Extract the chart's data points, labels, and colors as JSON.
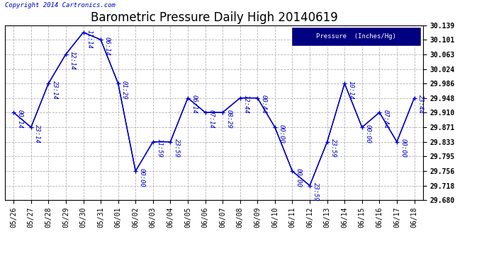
{
  "title": "Barometric Pressure Daily High 20140619",
  "copyright": "Copyright 2014 Cartronics.com",
  "legend_label": "Pressure  (Inches/Hg)",
  "x_labels": [
    "05/26",
    "05/27",
    "05/28",
    "05/29",
    "05/30",
    "05/31",
    "06/01",
    "06/02",
    "06/03",
    "06/04",
    "06/05",
    "06/06",
    "06/07",
    "06/08",
    "06/09",
    "06/10",
    "06/11",
    "06/12",
    "06/13",
    "06/14",
    "06/15",
    "06/16",
    "06/17",
    "06/18"
  ],
  "y_values": [
    29.91,
    29.871,
    29.986,
    30.063,
    30.12,
    30.101,
    29.986,
    29.756,
    29.833,
    29.833,
    29.948,
    29.91,
    29.91,
    29.948,
    29.948,
    29.871,
    29.756,
    29.718,
    29.833,
    29.986,
    29.871,
    29.91,
    29.833,
    29.948
  ],
  "point_labels": [
    "00:14",
    "23:14",
    "23:14",
    "12:14",
    "11:14",
    "06:14",
    "01:29",
    "00:00",
    "11:59",
    "23:59",
    "06:14",
    "07:14",
    "08:29",
    "12:44",
    "00:44",
    "00:00",
    "00:00",
    "23:59",
    "23:59",
    "10:14",
    "00:00",
    "07:44",
    "00:00",
    "23:44"
  ],
  "ylim_min": 29.68,
  "ylim_max": 30.139,
  "yticks": [
    29.68,
    29.718,
    29.756,
    29.795,
    29.833,
    29.871,
    29.91,
    29.948,
    29.986,
    30.024,
    30.063,
    30.101,
    30.139
  ],
  "line_color": "#0000CC",
  "marker_color": "#000000",
  "bg_color": "#ffffff",
  "grid_color": "#aaaaaa",
  "title_fontsize": 12,
  "label_fontsize": 7,
  "point_label_fontsize": 6.5,
  "legend_bg": "#000080",
  "legend_fg": "#ffffff"
}
